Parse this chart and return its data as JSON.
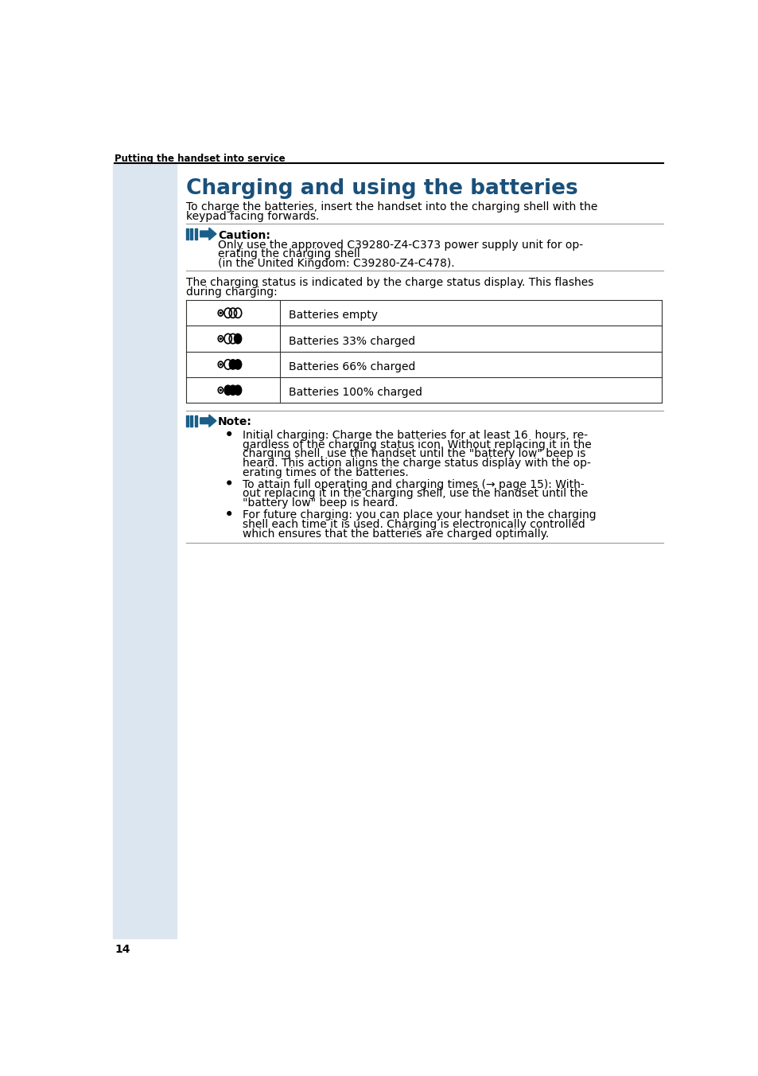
{
  "page_number": "14",
  "header_text": "Putting the handset into service",
  "title": "Charging and using the batteries",
  "title_color": "#1a507a",
  "sidebar_color": "#dce6f0",
  "arrow_color": "#1a5f8a",
  "body_color": "#000000",
  "bg_color": "#ffffff",
  "intro_text_lines": [
    "To charge the batteries, insert the handset into the charging shell with the",
    "keypad facing forwards."
  ],
  "caution_label": "Caution:",
  "caution_text_lines": [
    "Only use the approved C39280-Z4-C373 power supply unit for op-",
    "erating the charging shell",
    "(in the United Kingdom: C39280-Z4-C478)."
  ],
  "charging_status_lines": [
    "The charging status is indicated by the charge status display. This flashes",
    "during charging:"
  ],
  "table_rows": [
    {
      "label": "Batteries empty",
      "fill": 0
    },
    {
      "label": "Batteries 33% charged",
      "fill": 1
    },
    {
      "label": "Batteries 66% charged",
      "fill": 2
    },
    {
      "label": "Batteries 100% charged",
      "fill": 3
    }
  ],
  "note_label": "Note:",
  "note_bullet_lines": [
    [
      "Initial charging: Charge the batteries for at least 16  hours, re-",
      "gardless of the charging status icon. Without replacing it in the",
      "charging shell, use the handset until the \"battery low\" beep is",
      "heard. This action aligns the charge status display with the op-",
      "erating times of the batteries."
    ],
    [
      "To attain full operating and charging times (→ page 15): With-",
      "out replacing it in the charging shell, use the handset until the",
      "\"battery low\" beep is heard."
    ],
    [
      "For future charging: you can place your handset in the charging",
      "shell each time it is used. Charging is electronically controlled",
      "which ensures that the batteries are charged optimally."
    ]
  ],
  "line_color": "#999999",
  "table_line_color": "#333333"
}
